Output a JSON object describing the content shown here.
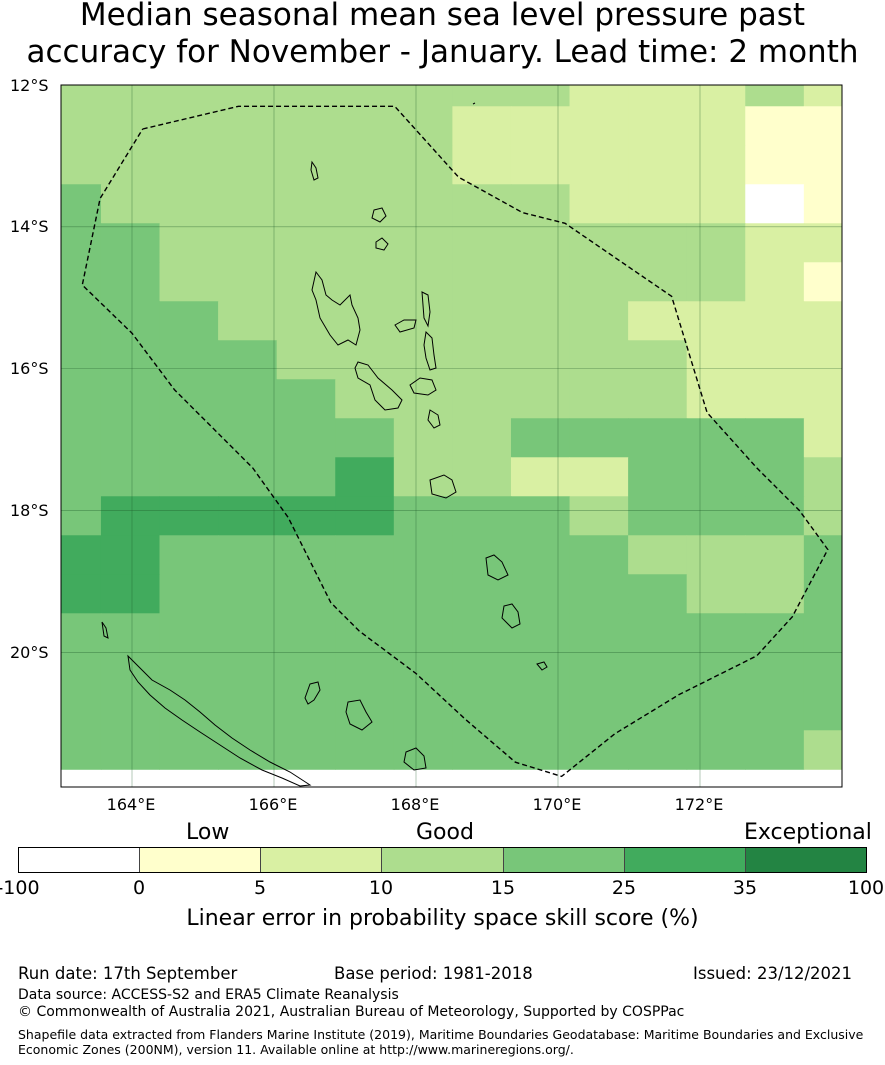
{
  "title_line1": "Median seasonal mean sea level pressure past",
  "title_line2": "accuracy for November - January. Lead time: 2 month",
  "lat_labels": [
    "12°S",
    "14°S",
    "16°S",
    "18°S",
    "20°S"
  ],
  "lon_labels": [
    "164°E",
    "166°E",
    "168°E",
    "170°E",
    "172°E"
  ],
  "category_labels": {
    "low": "Low",
    "good": "Good",
    "exceptional": "Exceptional"
  },
  "colorbar": {
    "ticks": [
      "-100",
      "0",
      "5",
      "10",
      "15",
      "25",
      "35",
      "100"
    ],
    "colors": [
      "#ffffff",
      "#ffffcc",
      "#d9f0a3",
      "#addd8e",
      "#78c679",
      "#41ab5d",
      "#238443"
    ],
    "label": "Linear error in probability space skill score (%)"
  },
  "map": {
    "lon_range": [
      163.0,
      174.0
    ],
    "lat_range": [
      -21.9,
      -12.0
    ],
    "cell_values_rows_north_to_south": [
      [
        3,
        3,
        3,
        3,
        3,
        3,
        3,
        3,
        3,
        2,
        2,
        2,
        3,
        2
      ],
      [
        3,
        3,
        3,
        3,
        3,
        3,
        3,
        2,
        2,
        2,
        2,
        2,
        1,
        1
      ],
      [
        3,
        3,
        3,
        3,
        3,
        3,
        3,
        2,
        2,
        2,
        2,
        2,
        1,
        1
      ],
      [
        4,
        3,
        3,
        3,
        3,
        3,
        3,
        3,
        3,
        2,
        2,
        2,
        0,
        1
      ],
      [
        4,
        4,
        3,
        3,
        3,
        3,
        3,
        3,
        3,
        3,
        3,
        3,
        2,
        2
      ],
      [
        4,
        4,
        3,
        3,
        3,
        3,
        3,
        3,
        3,
        3,
        3,
        3,
        2,
        1
      ],
      [
        4,
        4,
        4,
        3,
        3,
        3,
        3,
        3,
        3,
        3,
        2,
        2,
        2,
        2
      ],
      [
        4,
        4,
        4,
        4,
        3,
        3,
        3,
        3,
        3,
        3,
        3,
        2,
        2,
        2
      ],
      [
        4,
        4,
        4,
        4,
        4,
        3,
        3,
        3,
        3,
        3,
        3,
        2,
        2,
        2
      ],
      [
        4,
        4,
        4,
        4,
        4,
        4,
        3,
        3,
        4,
        4,
        4,
        4,
        4,
        2
      ],
      [
        4,
        4,
        4,
        4,
        4,
        5,
        3,
        3,
        2,
        2,
        4,
        4,
        4,
        3
      ],
      [
        4,
        5,
        5,
        5,
        5,
        5,
        4,
        4,
        4,
        3,
        4,
        4,
        4,
        3
      ],
      [
        5,
        5,
        4,
        4,
        4,
        4,
        4,
        4,
        4,
        4,
        3,
        3,
        3,
        4
      ],
      [
        5,
        5,
        4,
        4,
        4,
        4,
        4,
        4,
        4,
        4,
        4,
        3,
        3,
        4
      ],
      [
        4,
        4,
        4,
        4,
        4,
        4,
        4,
        4,
        4,
        4,
        4,
        4,
        4,
        4
      ],
      [
        4,
        4,
        4,
        4,
        4,
        4,
        4,
        4,
        4,
        4,
        4,
        4,
        4,
        4
      ],
      [
        4,
        4,
        4,
        4,
        4,
        4,
        4,
        4,
        4,
        4,
        4,
        4,
        4,
        4
      ],
      [
        4,
        4,
        4,
        4,
        4,
        4,
        4,
        4,
        4,
        4,
        4,
        4,
        4,
        3
      ]
    ],
    "eez_boundary_lonlat": [
      [
        164.15,
        -12.62
      ],
      [
        165.5,
        -12.3
      ],
      [
        166.5,
        -12.3
      ],
      [
        167.7,
        -12.3
      ],
      [
        168.6,
        -13.3
      ],
      [
        169.5,
        -13.8
      ],
      [
        170.1,
        -13.95
      ],
      [
        170.9,
        -14.5
      ],
      [
        171.6,
        -14.98
      ],
      [
        172.1,
        -16.62
      ],
      [
        172.8,
        -17.4
      ],
      [
        173.4,
        -18.0
      ],
      [
        173.8,
        -18.55
      ],
      [
        173.3,
        -19.5
      ],
      [
        172.8,
        -20.05
      ],
      [
        171.7,
        -20.6
      ],
      [
        170.8,
        -21.15
      ],
      [
        170.05,
        -21.75
      ],
      [
        169.4,
        -21.55
      ],
      [
        168.7,
        -20.95
      ],
      [
        168.0,
        -20.3
      ],
      [
        167.2,
        -19.7
      ],
      [
        166.8,
        -19.3
      ],
      [
        166.2,
        -18.1
      ],
      [
        165.7,
        -17.4
      ],
      [
        165.3,
        -17.0
      ],
      [
        164.6,
        -16.3
      ],
      [
        164.0,
        -15.5
      ],
      [
        163.3,
        -14.82
      ],
      [
        163.55,
        -13.6
      ],
      [
        164.15,
        -12.62
      ]
    ]
  },
  "footer": {
    "run_date": "Run date: 17th September",
    "base_period": "Base period: 1981-2018",
    "issued": "Issued: 23/12/2021",
    "data_source": "Data source: ACCESS-S2 and ERA5 Climate Reanalysis",
    "copyright": "© Commonwealth of Australia 2021, Australian Bureau of Meteorology, Supported by COSPPac",
    "shapefile_line1": "Shapefile data extracted from Flanders Marine Institute (2019), Maritime Boundaries Geodatabase: Maritime Boundaries and Exclusive",
    "shapefile_line2": "Economic Zones (200NM), version 11. Available online at http://www.marineregions.org/."
  }
}
